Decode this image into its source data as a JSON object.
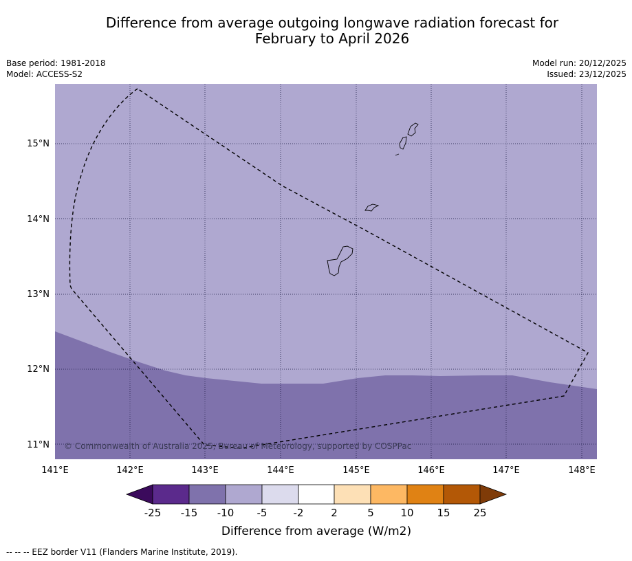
{
  "title": {
    "line1": "Difference from average outgoing longwave radiation forecast for",
    "line2": "February to April 2026"
  },
  "meta": {
    "base_period": "Base period: 1981-2018",
    "model": "Model: ACCESS-S2",
    "model_run": "Model run: 20/12/2025",
    "issued": "Issued: 23/12/2025"
  },
  "map": {
    "lon_labels": [
      "141°E",
      "142°E",
      "143°E",
      "144°E",
      "145°E",
      "146°E",
      "147°E",
      "148°E"
    ],
    "lat_labels": [
      "15°N",
      "14°N",
      "13°N",
      "12°N",
      "11°N"
    ],
    "copyright": "© Commonwealth of Australia 2025, Bureau of Meteorology, supported by COSPPac",
    "regions": [
      {
        "category": "-10 to -5",
        "color": "#afa8d0"
      },
      {
        "category": "-15 to -10",
        "color": "#7f72ac"
      }
    ],
    "eez_border_color": "#000000"
  },
  "legend": {
    "tick_labels": [
      "-25",
      "-15",
      "-10",
      "-5",
      "-2",
      "2",
      "5",
      "10",
      "15",
      "25"
    ],
    "colors": [
      "#3b0a5c",
      "#5b2a8c",
      "#7f72ac",
      "#afa8d0",
      "#dcdbed",
      "#ffffff",
      "#fde0b6",
      "#fdb863",
      "#e08214",
      "#b35806",
      "#7f3b08"
    ],
    "label": "Difference from average (W/m2)"
  },
  "footer": {
    "eez_note": "--  --  -- EEZ border V11 (Flanders Marine Institute, 2019)."
  }
}
